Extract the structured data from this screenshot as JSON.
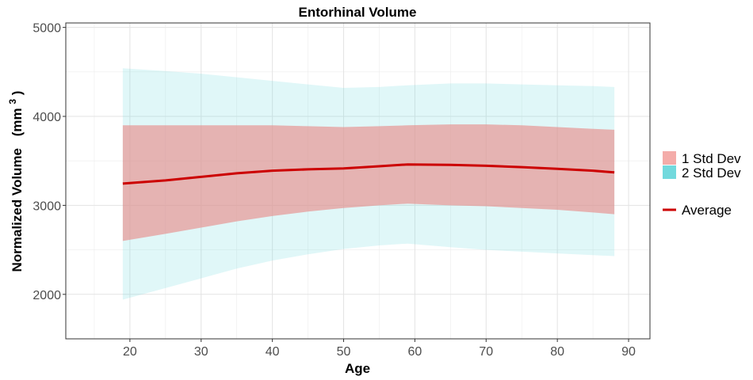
{
  "chart_data": {
    "type": "area",
    "title": "Entorhinal Volume",
    "xlabel": "Age",
    "ylabel": "Normalized Volume",
    "ylabel_unit_base": "(mm",
    "ylabel_unit_exp": "3",
    "ylabel_unit_close": ")",
    "xlim": [
      11,
      93
    ],
    "ylim": [
      1500,
      5050
    ],
    "x_ticks": [
      20,
      30,
      40,
      50,
      60,
      70,
      80,
      90
    ],
    "y_ticks": [
      2000,
      3000,
      4000,
      5000
    ],
    "grid": true,
    "legend_position": "right",
    "x": [
      19,
      25,
      30,
      35,
      40,
      45,
      50,
      55,
      59,
      65,
      70,
      75,
      80,
      85,
      88
    ],
    "series": [
      {
        "name": "2 Std Dev",
        "kind": "band",
        "color": "#72d9dd",
        "opacity": 0.22,
        "lower": [
          1940,
          2070,
          2180,
          2290,
          2380,
          2450,
          2510,
          2550,
          2570,
          2530,
          2500,
          2480,
          2460,
          2440,
          2430
        ],
        "upper": [
          4540,
          4510,
          4480,
          4440,
          4400,
          4360,
          4320,
          4330,
          4350,
          4370,
          4370,
          4360,
          4350,
          4340,
          4330
        ]
      },
      {
        "name": "1 Std Dev",
        "kind": "band",
        "color": "#e88f8c",
        "opacity": 0.65,
        "lower": [
          2600,
          2680,
          2750,
          2820,
          2880,
          2930,
          2970,
          3000,
          3020,
          3000,
          2990,
          2970,
          2950,
          2920,
          2900
        ],
        "upper": [
          3900,
          3900,
          3900,
          3900,
          3900,
          3890,
          3880,
          3890,
          3900,
          3910,
          3910,
          3900,
          3880,
          3860,
          3850
        ]
      },
      {
        "name": "Average",
        "kind": "line",
        "color": "#cc0000",
        "values": [
          3245,
          3280,
          3320,
          3360,
          3390,
          3405,
          3415,
          3440,
          3460,
          3455,
          3445,
          3430,
          3410,
          3390,
          3370
        ]
      }
    ],
    "legend": {
      "band_items": [
        "1 Std Dev",
        "2 Std Dev"
      ],
      "band_colors": [
        "#f4aca9",
        "#72d9dd"
      ],
      "line_items": [
        "Average"
      ],
      "line_color": "#cc0000"
    }
  }
}
